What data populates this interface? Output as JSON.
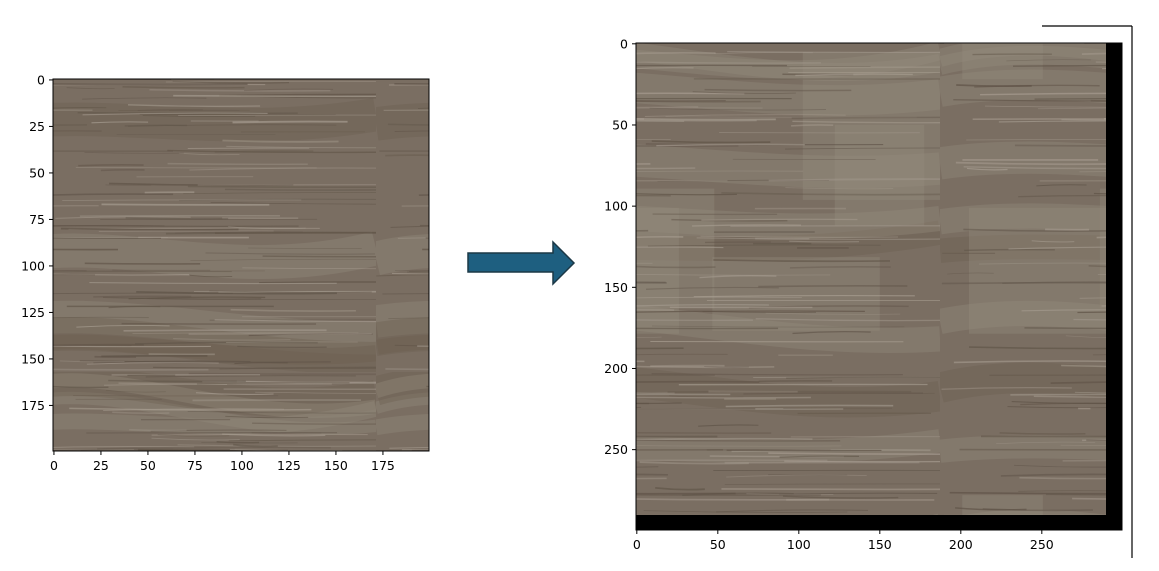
{
  "colors": {
    "wood_base": "#7a6e62",
    "wood_light": "#948b7f",
    "wood_dark": "#6a5c4e",
    "grain_dark": "#5e5246",
    "grain_light": "#a79d91",
    "padding": "#000000",
    "arrow_fill": "#1e5f80",
    "arrow_stroke": "#1c3846",
    "axis": "#000000"
  },
  "left_image": {
    "description_icon": "wood-texture-icon",
    "x_ticks": [
      "0",
      "25",
      "50",
      "75",
      "100",
      "125",
      "150",
      "175"
    ],
    "y_ticks": [
      "0",
      "25",
      "50",
      "75",
      "100",
      "125",
      "150",
      "175"
    ],
    "x_range": [
      0,
      199
    ],
    "y_range": [
      0,
      199
    ]
  },
  "arrow": {
    "icon": "right-arrow-icon"
  },
  "right_image": {
    "description_icon": "wood-texture-icon",
    "x_ticks": [
      "0",
      "50",
      "100",
      "150",
      "200",
      "250"
    ],
    "y_ticks": [
      "0",
      "50",
      "100",
      "150",
      "200",
      "250"
    ],
    "x_range": [
      0,
      299
    ],
    "y_range": [
      0,
      299
    ],
    "content_extent": [
      290,
      290
    ]
  }
}
